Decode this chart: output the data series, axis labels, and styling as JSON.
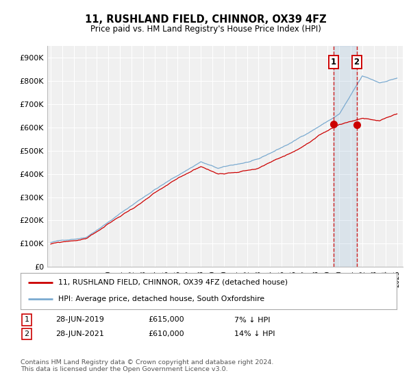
{
  "title": "11, RUSHLAND FIELD, CHINNOR, OX39 4FZ",
  "subtitle": "Price paid vs. HM Land Registry's House Price Index (HPI)",
  "legend_line1": "11, RUSHLAND FIELD, CHINNOR, OX39 4FZ (detached house)",
  "legend_line2": "HPI: Average price, detached house, South Oxfordshire",
  "transaction1_date": "28-JUN-2019",
  "transaction1_price": "£615,000",
  "transaction1_hpi": "7% ↓ HPI",
  "transaction1_price_val": 615000,
  "transaction1_year": 2019.5,
  "transaction2_date": "28-JUN-2021",
  "transaction2_price": "£610,000",
  "transaction2_hpi": "14% ↓ HPI",
  "transaction2_price_val": 610000,
  "transaction2_year": 2021.5,
  "footer": "Contains HM Land Registry data © Crown copyright and database right 2024.\nThis data is licensed under the Open Government Licence v3.0.",
  "color_red": "#cc0000",
  "color_blue": "#7aaad0",
  "background_color": "#ffffff",
  "plot_bg_color": "#f0f0f0",
  "grid_color": "#ffffff",
  "ylim": [
    0,
    950000
  ],
  "yticks": [
    0,
    100000,
    200000,
    300000,
    400000,
    500000,
    600000,
    700000,
    800000,
    900000
  ],
  "ytick_labels": [
    "£0",
    "£100K",
    "£200K",
    "£300K",
    "£400K",
    "£500K",
    "£600K",
    "£700K",
    "£800K",
    "£900K"
  ],
  "xmin": 1994.7,
  "xmax": 2025.5,
  "year_start": 1995,
  "year_end": 2025
}
